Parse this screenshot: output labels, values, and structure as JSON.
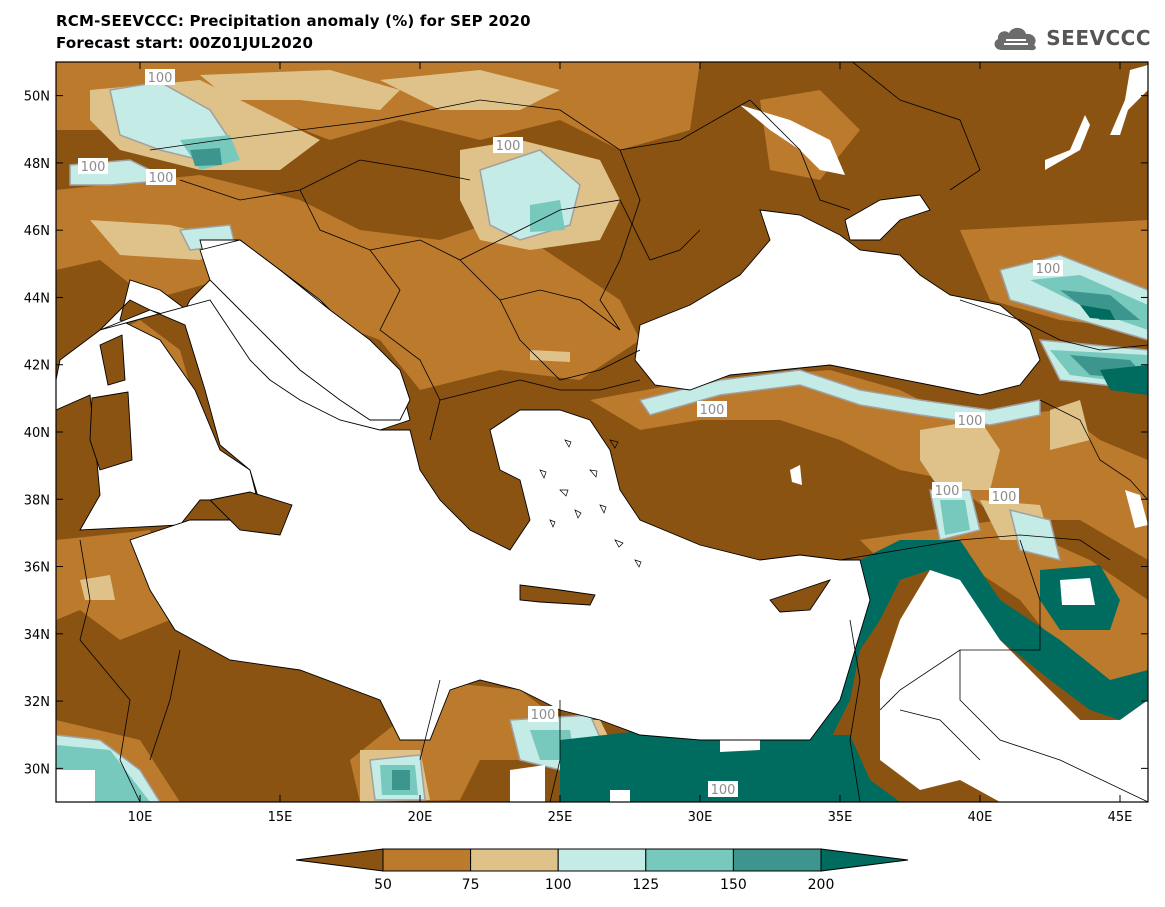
{
  "header": {
    "title": "RCM-SEEVCCC: Precipitation anomaly (%) for SEP 2020",
    "subtitle": "Forecast start: 00Z01JUL2020",
    "logo_text": "SEEVCCC"
  },
  "map": {
    "lat_ticks": [
      "50N",
      "48N",
      "46N",
      "44N",
      "42N",
      "40N",
      "38N",
      "36N",
      "34N",
      "32N",
      "30N"
    ],
    "lon_ticks": [
      "10E",
      "15E",
      "20E",
      "25E",
      "30E",
      "35E",
      "40E",
      "45E"
    ],
    "contour_label": "100",
    "lon_range": [
      7,
      46
    ],
    "lat_range": [
      29,
      51
    ]
  },
  "colorbar": {
    "labels": [
      "50",
      "75",
      "100",
      "125",
      "150",
      "200"
    ],
    "colors": [
      "#8a5312",
      "#bb7a2c",
      "#dfc28a",
      "#c4ebe6",
      "#78c9bd",
      "#3d968d",
      "#006b5f"
    ]
  }
}
